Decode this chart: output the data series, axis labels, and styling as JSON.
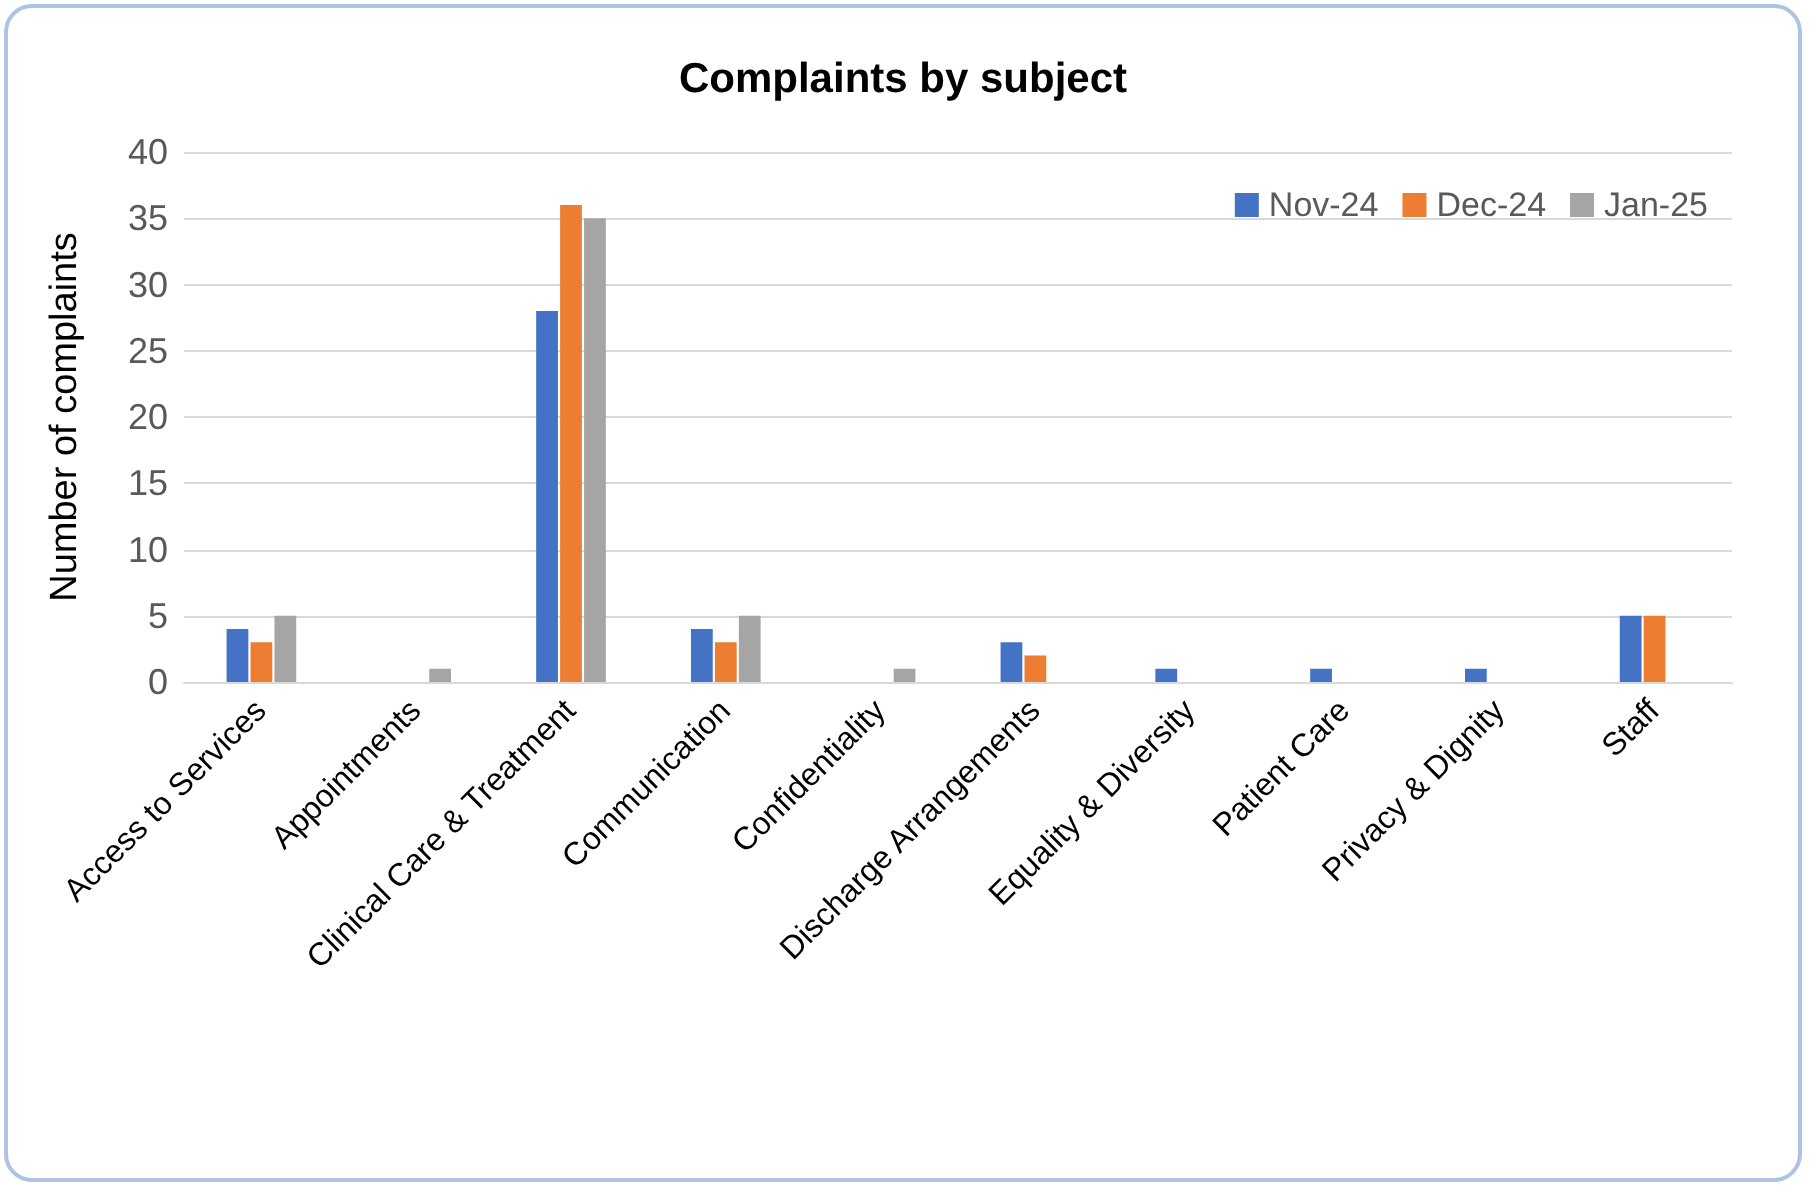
{
  "chart_data": {
    "type": "bar",
    "title": "Complaints by subject",
    "ylabel": "Number of complaints",
    "categories": [
      "Access to Services",
      "Appointments",
      "Clinical Care & Treatment",
      "Communication",
      "Confidentiality",
      "Discharge Arrangements",
      "Equality & Diversity",
      "Patient Care",
      "Privacy & Dignity",
      "Staff"
    ],
    "series": [
      {
        "name": "Nov-24",
        "color": "#4472c4",
        "values": [
          4,
          0,
          28,
          4,
          0,
          3,
          1,
          1,
          1,
          5
        ]
      },
      {
        "name": "Dec-24",
        "color": "#ed7d31",
        "values": [
          3,
          0,
          36,
          3,
          0,
          2,
          0,
          0,
          0,
          5
        ]
      },
      {
        "name": "Jan-25",
        "color": "#a5a5a5",
        "values": [
          5,
          1,
          35,
          5,
          1,
          0,
          0,
          0,
          0,
          0
        ]
      }
    ],
    "ylim": [
      0,
      40
    ],
    "yticks": [
      0,
      5,
      10,
      15,
      20,
      25,
      30,
      35,
      40
    ],
    "grid": "y",
    "legend": "top right"
  }
}
